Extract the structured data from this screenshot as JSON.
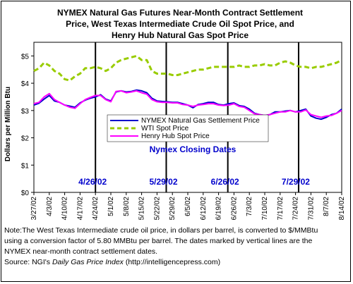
{
  "chart_data": {
    "type": "line",
    "title_lines": [
      "NYMEX Natural Gas Futures Near-Month Contract Settlement",
      "Price, West Texas Intermediate Crude Oil Spot Price, and",
      "Henry Hub Natural Gas Spot Price"
    ],
    "ylabel": "Dollars per Million Btu",
    "ylim": [
      0,
      5.5
    ],
    "y_ticks": [
      "$0",
      "$1",
      "$2",
      "$3",
      "$4",
      "$5"
    ],
    "x_tick_labels": [
      "3/27/02",
      "4/3/02",
      "4/10/02",
      "4/17/02",
      "4/24/02",
      "5/1/02",
      "5/8/02",
      "5/15/02",
      "5/22/02",
      "5/29/02",
      "6/5/02",
      "6/12/02",
      "6/19/02",
      "6/26/02",
      "7/3/02",
      "7/10/02",
      "7/17/02",
      "7/24/02",
      "7/31/02",
      "8/7/02",
      "8/14/02"
    ],
    "legend_position": "center",
    "series": [
      {
        "name": "NYMEX Natural Gas Settlement Price",
        "color": "#0000cc",
        "style": "solid",
        "values": [
          3.2,
          3.27,
          3.42,
          3.55,
          3.35,
          3.3,
          3.2,
          3.16,
          3.12,
          3.28,
          3.38,
          3.45,
          3.5,
          3.58,
          3.42,
          3.35,
          3.68,
          3.72,
          3.68,
          3.7,
          3.75,
          3.72,
          3.65,
          3.45,
          3.35,
          3.33,
          3.32,
          3.3,
          3.3,
          3.25,
          3.2,
          3.1,
          3.22,
          3.25,
          3.3,
          3.3,
          3.22,
          3.2,
          3.25,
          3.28,
          3.18,
          3.15,
          3.05,
          2.9,
          2.85,
          2.82,
          2.85,
          2.95,
          2.95,
          2.98,
          3.0,
          2.95,
          3.0,
          3.05,
          2.8,
          2.72,
          2.68,
          2.75,
          2.85,
          2.9,
          3.05
        ]
      },
      {
        "name": "WTI Spot Price",
        "color": "#99cc00",
        "style": "dashed",
        "values": [
          4.45,
          4.55,
          4.75,
          4.65,
          4.45,
          4.35,
          4.15,
          4.1,
          4.25,
          4.35,
          4.55,
          4.55,
          4.6,
          4.55,
          4.45,
          4.55,
          4.75,
          4.85,
          4.9,
          4.95,
          5.0,
          4.85,
          4.85,
          4.45,
          4.35,
          4.35,
          4.35,
          4.3,
          4.3,
          4.35,
          4.4,
          4.45,
          4.5,
          4.5,
          4.55,
          4.6,
          4.6,
          4.6,
          4.6,
          4.6,
          4.65,
          4.6,
          4.6,
          4.65,
          4.65,
          4.7,
          4.65,
          4.65,
          4.75,
          4.8,
          4.75,
          4.65,
          4.6,
          4.6,
          4.55,
          4.6,
          4.6,
          4.65,
          4.7,
          4.75,
          4.85
        ]
      },
      {
        "name": "Henry Hub Spot Price",
        "color": "#ff00ff",
        "style": "solid",
        "values": [
          3.25,
          3.3,
          3.5,
          3.62,
          3.4,
          3.3,
          3.2,
          3.12,
          3.08,
          3.25,
          3.4,
          3.48,
          3.55,
          3.55,
          3.4,
          3.32,
          3.7,
          3.72,
          3.65,
          3.68,
          3.72,
          3.65,
          3.6,
          3.4,
          3.32,
          3.3,
          3.3,
          3.28,
          3.28,
          3.22,
          3.2,
          3.15,
          3.2,
          3.22,
          3.25,
          3.25,
          3.2,
          3.18,
          3.2,
          3.25,
          3.15,
          3.12,
          3.0,
          2.88,
          2.85,
          2.82,
          2.85,
          2.9,
          2.95,
          2.95,
          3.0,
          2.95,
          2.95,
          3.02,
          2.85,
          2.8,
          2.75,
          2.8,
          2.82,
          2.9,
          3.0
        ]
      }
    ],
    "vertical_markers": [
      {
        "label": "4/26/02",
        "x_index": 20
      },
      {
        "label": "5/29/02",
        "x_index": 43
      },
      {
        "label": "6/26/02",
        "x_index": 63
      },
      {
        "label": "7/29/02",
        "x_index": 86
      }
    ],
    "marker_title": "Nymex Closing Dates",
    "x_count": 101
  },
  "note": {
    "line1": "Note:The West Texas Intermediate crude oil price, in dollars per barrel,  is converted to $/MMBtu",
    "line2": "using a conversion factor of 5.80 MMBtu per barrel.  The dates marked by vertical lines are the",
    "line3": "NYMEX near-month contract settlement dates.",
    "source_prefix": "Source:  NGI's ",
    "source_italic": "Daily Gas Price Index",
    "source_suffix": " (http://intelligencepress.com)"
  }
}
